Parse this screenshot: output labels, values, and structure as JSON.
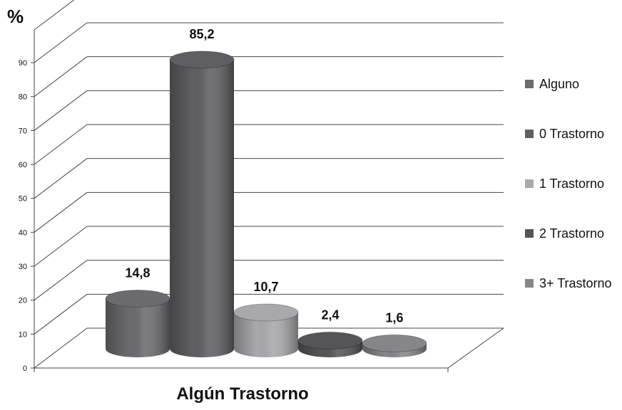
{
  "chart_data": {
    "type": "bar",
    "ylabel": "%",
    "xlabel": "Algún Trastorno",
    "ylim": [
      0,
      90
    ],
    "yticks": [
      "0",
      "10",
      "20",
      "30",
      "40",
      "50",
      "60",
      "70",
      "80",
      "90"
    ],
    "grid": true,
    "legend_position": "right",
    "series": [
      {
        "name": "Alguno",
        "value": 14.8,
        "label": "14,8",
        "color": "#6b6b6f"
      },
      {
        "name": "0 Trastorno",
        "value": 85.2,
        "label": "85,2",
        "color": "#5f5f63"
      },
      {
        "name": "1 Trastorno",
        "value": 10.7,
        "label": "10,7",
        "color": "#a9a9ad"
      },
      {
        "name": "2 Trastorno",
        "value": 2.4,
        "label": "2,4",
        "color": "#555558"
      },
      {
        "name": "3+ Trastorno",
        "value": 1.6,
        "label": "1,6",
        "color": "#86868a"
      }
    ]
  }
}
